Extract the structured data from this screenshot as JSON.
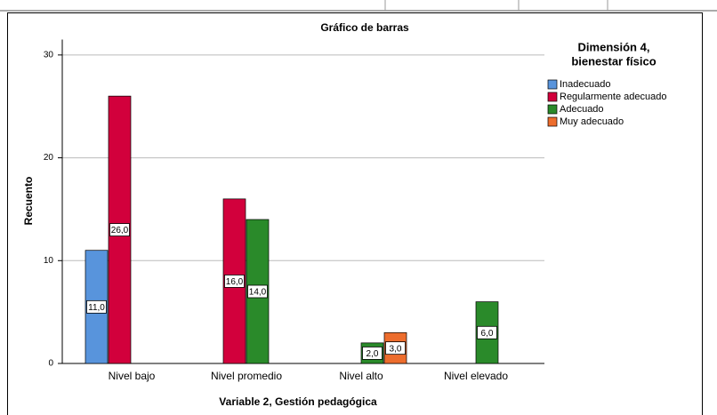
{
  "chart_data": {
    "type": "bar",
    "title": "Gráfico de barras",
    "x_label": "Variable 2, Gestión pedagógica",
    "y_label": "Recuento",
    "categories": [
      "Nivel bajo",
      "Nivel promedio",
      "Nivel alto",
      "Nivel elevado"
    ],
    "legend_title": [
      "Dimensión 4,",
      "bienestar físico"
    ],
    "series": [
      {
        "name": "Inadecuado",
        "color": "#5894dc",
        "values": [
          11,
          null,
          null,
          null
        ],
        "value_labels": [
          "11,0",
          null,
          null,
          null
        ]
      },
      {
        "name": "Regularmente adecuado",
        "color": "#d2003c",
        "values": [
          26,
          16,
          null,
          null
        ],
        "value_labels": [
          "26,0",
          "16,0",
          null,
          null
        ]
      },
      {
        "name": "Adecuado",
        "color": "#2a8a2a",
        "values": [
          null,
          14,
          2,
          6
        ],
        "value_labels": [
          null,
          "14,0",
          "2,0",
          "6,0"
        ]
      },
      {
        "name": "Muy adecuado",
        "color": "#ed6d2d",
        "values": [
          null,
          null,
          3,
          null
        ],
        "value_labels": [
          null,
          null,
          "3,0",
          null
        ]
      }
    ],
    "ylim": [
      0,
      31.5
    ],
    "yticks": [
      0,
      10,
      20,
      30
    ],
    "grid": true,
    "legend": "right"
  }
}
